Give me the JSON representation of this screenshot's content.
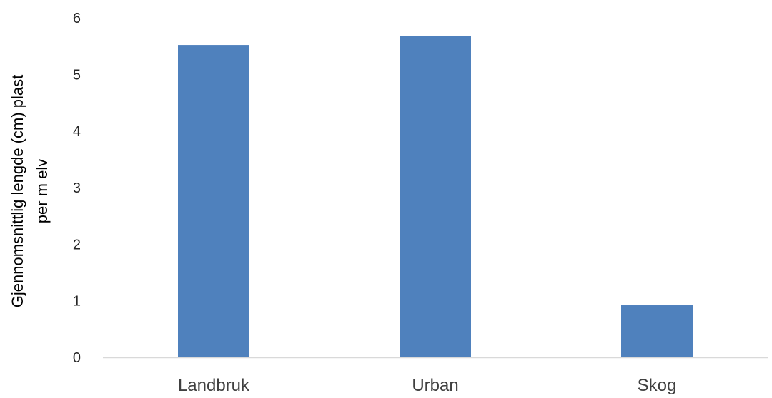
{
  "chart_data": {
    "type": "bar",
    "title": "",
    "xlabel": "",
    "ylabel_lines": [
      "Gjennomsnittlig lengde (cm) plast",
      "per m elv"
    ],
    "categories": [
      "Landbruk",
      "Urban",
      "Skog"
    ],
    "values": [
      5.52,
      5.68,
      0.92
    ],
    "ylim": [
      0,
      6
    ],
    "yticks": [
      "0",
      "1",
      "2",
      "3",
      "4",
      "5",
      "6"
    ],
    "grid": false,
    "legend": "none",
    "bar_color": "#4f81bd",
    "axis_color": "#d9d9d9"
  }
}
